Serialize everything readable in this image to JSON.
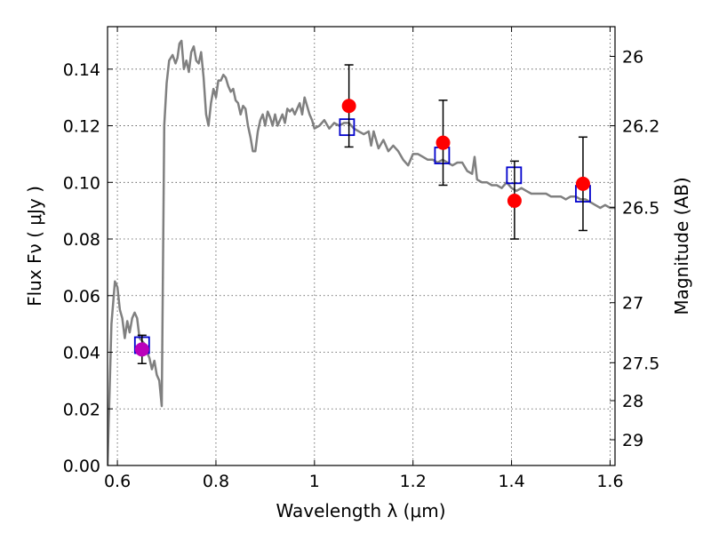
{
  "chart_data": {
    "type": "scatter",
    "title": "",
    "xlabel": "Wavelength  λ (μm)",
    "ylabel": "Flux  Fν  ( μJy )",
    "ylabel_right": "Magnitude (AB)",
    "xlim": [
      0.58,
      1.61
    ],
    "ylim": [
      0.0,
      0.155
    ],
    "grid": true,
    "x_ticks": [
      {
        "value": 0.6,
        "label": "0.6"
      },
      {
        "value": 0.8,
        "label": "0.8"
      },
      {
        "value": 1.0,
        "label": "1"
      },
      {
        "value": 1.2,
        "label": "1.2"
      },
      {
        "value": 1.4,
        "label": "1.4"
      },
      {
        "value": 1.6,
        "label": "1.6"
      }
    ],
    "y_ticks": [
      {
        "value": 0.0,
        "label": "0.00"
      },
      {
        "value": 0.02,
        "label": "0.02"
      },
      {
        "value": 0.04,
        "label": "0.04"
      },
      {
        "value": 0.06,
        "label": "0.06"
      },
      {
        "value": 0.08,
        "label": "0.08"
      },
      {
        "value": 0.1,
        "label": "0.10"
      },
      {
        "value": 0.12,
        "label": "0.12"
      },
      {
        "value": 0.14,
        "label": "0.14"
      }
    ],
    "right_ticks": [
      {
        "flux": 0.1445,
        "label": "26"
      },
      {
        "flux": 0.12,
        "label": "26.2"
      },
      {
        "flux": 0.0912,
        "label": "26.5"
      },
      {
        "flux": 0.0575,
        "label": "27"
      },
      {
        "flux": 0.0363,
        "label": "27.5"
      },
      {
        "flux": 0.0229,
        "label": "28"
      },
      {
        "flux": 0.0091,
        "label": "29"
      }
    ],
    "series": [
      {
        "kind": "line",
        "color": "#808080",
        "points": [
          [
            0.58,
            0.0
          ],
          [
            0.588,
            0.05
          ],
          [
            0.595,
            0.065
          ],
          [
            0.6,
            0.063
          ],
          [
            0.605,
            0.055
          ],
          [
            0.61,
            0.052
          ],
          [
            0.615,
            0.045
          ],
          [
            0.62,
            0.051
          ],
          [
            0.625,
            0.047
          ],
          [
            0.63,
            0.052
          ],
          [
            0.635,
            0.054
          ],
          [
            0.64,
            0.052
          ],
          [
            0.645,
            0.045
          ],
          [
            0.65,
            0.044
          ],
          [
            0.655,
            0.043
          ],
          [
            0.66,
            0.04
          ],
          [
            0.665,
            0.038
          ],
          [
            0.67,
            0.034
          ],
          [
            0.675,
            0.037
          ],
          [
            0.68,
            0.032
          ],
          [
            0.685,
            0.03
          ],
          [
            0.69,
            0.021
          ],
          [
            0.692,
            0.06
          ],
          [
            0.695,
            0.12
          ],
          [
            0.7,
            0.135
          ],
          [
            0.705,
            0.143
          ],
          [
            0.712,
            0.145
          ],
          [
            0.718,
            0.142
          ],
          [
            0.722,
            0.144
          ],
          [
            0.726,
            0.149
          ],
          [
            0.73,
            0.15
          ],
          [
            0.735,
            0.14
          ],
          [
            0.74,
            0.143
          ],
          [
            0.745,
            0.139
          ],
          [
            0.75,
            0.146
          ],
          [
            0.755,
            0.148
          ],
          [
            0.76,
            0.143
          ],
          [
            0.765,
            0.142
          ],
          [
            0.77,
            0.146
          ],
          [
            0.775,
            0.137
          ],
          [
            0.78,
            0.124
          ],
          [
            0.785,
            0.12
          ],
          [
            0.79,
            0.128
          ],
          [
            0.795,
            0.133
          ],
          [
            0.8,
            0.13
          ],
          [
            0.805,
            0.136
          ],
          [
            0.81,
            0.136
          ],
          [
            0.815,
            0.138
          ],
          [
            0.82,
            0.137
          ],
          [
            0.825,
            0.134
          ],
          [
            0.83,
            0.132
          ],
          [
            0.835,
            0.133
          ],
          [
            0.84,
            0.129
          ],
          [
            0.845,
            0.128
          ],
          [
            0.85,
            0.124
          ],
          [
            0.855,
            0.127
          ],
          [
            0.86,
            0.126
          ],
          [
            0.865,
            0.12
          ],
          [
            0.87,
            0.116
          ],
          [
            0.875,
            0.111
          ],
          [
            0.88,
            0.111
          ],
          [
            0.885,
            0.118
          ],
          [
            0.89,
            0.122
          ],
          [
            0.895,
            0.124
          ],
          [
            0.9,
            0.12
          ],
          [
            0.905,
            0.125
          ],
          [
            0.91,
            0.123
          ],
          [
            0.915,
            0.12
          ],
          [
            0.92,
            0.124
          ],
          [
            0.925,
            0.12
          ],
          [
            0.93,
            0.122
          ],
          [
            0.935,
            0.124
          ],
          [
            0.94,
            0.121
          ],
          [
            0.945,
            0.126
          ],
          [
            0.95,
            0.125
          ],
          [
            0.955,
            0.126
          ],
          [
            0.96,
            0.124
          ],
          [
            0.965,
            0.126
          ],
          [
            0.97,
            0.128
          ],
          [
            0.975,
            0.124
          ],
          [
            0.98,
            0.13
          ],
          [
            0.985,
            0.127
          ],
          [
            0.99,
            0.124
          ],
          [
            0.995,
            0.122
          ],
          [
            1.0,
            0.119
          ],
          [
            1.01,
            0.12
          ],
          [
            1.02,
            0.122
          ],
          [
            1.03,
            0.119
          ],
          [
            1.04,
            0.121
          ],
          [
            1.05,
            0.12
          ],
          [
            1.06,
            0.121
          ],
          [
            1.07,
            0.121
          ],
          [
            1.08,
            0.119
          ],
          [
            1.09,
            0.118
          ],
          [
            1.1,
            0.117
          ],
          [
            1.11,
            0.118
          ],
          [
            1.115,
            0.113
          ],
          [
            1.12,
            0.118
          ],
          [
            1.13,
            0.112
          ],
          [
            1.14,
            0.115
          ],
          [
            1.15,
            0.111
          ],
          [
            1.16,
            0.113
          ],
          [
            1.17,
            0.111
          ],
          [
            1.18,
            0.108
          ],
          [
            1.19,
            0.106
          ],
          [
            1.2,
            0.11
          ],
          [
            1.21,
            0.11
          ],
          [
            1.22,
            0.109
          ],
          [
            1.23,
            0.108
          ],
          [
            1.24,
            0.108
          ],
          [
            1.25,
            0.107
          ],
          [
            1.26,
            0.108
          ],
          [
            1.27,
            0.107
          ],
          [
            1.28,
            0.106
          ],
          [
            1.29,
            0.107
          ],
          [
            1.3,
            0.107
          ],
          [
            1.31,
            0.104
          ],
          [
            1.32,
            0.103
          ],
          [
            1.325,
            0.109
          ],
          [
            1.33,
            0.101
          ],
          [
            1.34,
            0.1
          ],
          [
            1.35,
            0.1
          ],
          [
            1.36,
            0.099
          ],
          [
            1.37,
            0.099
          ],
          [
            1.38,
            0.098
          ],
          [
            1.39,
            0.1
          ],
          [
            1.4,
            0.098
          ],
          [
            1.41,
            0.097
          ],
          [
            1.42,
            0.098
          ],
          [
            1.43,
            0.097
          ],
          [
            1.44,
            0.096
          ],
          [
            1.45,
            0.096
          ],
          [
            1.46,
            0.096
          ],
          [
            1.47,
            0.096
          ],
          [
            1.48,
            0.095
          ],
          [
            1.49,
            0.095
          ],
          [
            1.5,
            0.095
          ],
          [
            1.51,
            0.094
          ],
          [
            1.52,
            0.095
          ],
          [
            1.53,
            0.095
          ],
          [
            1.54,
            0.094
          ],
          [
            1.55,
            0.094
          ],
          [
            1.56,
            0.093
          ],
          [
            1.57,
            0.092
          ],
          [
            1.58,
            0.091
          ],
          [
            1.59,
            0.092
          ],
          [
            1.6,
            0.091
          ],
          [
            1.61,
            0.091
          ]
        ]
      },
      {
        "kind": "squares",
        "color": "#0000cc",
        "points": [
          [
            0.65,
            0.0425
          ],
          [
            1.066,
            0.1195
          ],
          [
            1.259,
            0.1095
          ],
          [
            1.405,
            0.1025
          ],
          [
            1.545,
            0.096
          ]
        ]
      },
      {
        "kind": "errorbars",
        "color": "#000000",
        "points": [
          {
            "x": 0.65,
            "y": 0.041,
            "lo": 0.036,
            "hi": 0.046
          },
          {
            "x": 1.07,
            "y": 0.127,
            "lo": 0.1125,
            "hi": 0.1415
          },
          {
            "x": 1.261,
            "y": 0.114,
            "lo": 0.099,
            "hi": 0.129
          },
          {
            "x": 1.406,
            "y": 0.0935,
            "lo": 0.08,
            "hi": 0.1075
          },
          {
            "x": 1.545,
            "y": 0.0995,
            "lo": 0.083,
            "hi": 0.116
          }
        ]
      },
      {
        "kind": "circles",
        "color": "#ff0000",
        "points": [
          [
            1.07,
            0.127
          ],
          [
            1.261,
            0.114
          ],
          [
            1.406,
            0.0935
          ],
          [
            1.545,
            0.0995
          ]
        ]
      },
      {
        "kind": "circles",
        "color": "#bb00bb",
        "points": [
          [
            0.65,
            0.041
          ]
        ]
      }
    ]
  }
}
